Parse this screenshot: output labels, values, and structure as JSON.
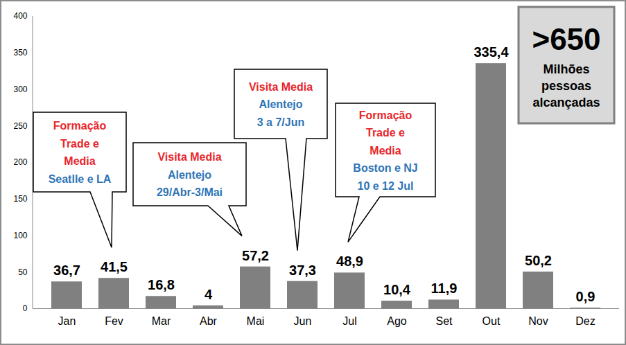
{
  "chart_data": {
    "type": "bar",
    "categories": [
      "Jan",
      "Fev",
      "Mar",
      "Abr",
      "Mai",
      "Jun",
      "Jul",
      "Ago",
      "Set",
      "Out",
      "Nov",
      "Dez"
    ],
    "values": [
      36.7,
      41.5,
      16.8,
      4,
      57.2,
      37.3,
      48.9,
      10.4,
      11.9,
      335.4,
      50.2,
      0.9
    ],
    "value_labels": [
      "36,7",
      "41,5",
      "16,8",
      "4",
      "57,2",
      "37,3",
      "48,9",
      "10,4",
      "11,9",
      "335,4",
      "50,2",
      "0,9"
    ],
    "color": "#808080",
    "ylim": [
      0,
      400
    ],
    "yticks": [
      0,
      50,
      100,
      150,
      200,
      250,
      300,
      350,
      400
    ],
    "grid": false,
    "data_labels": true,
    "annotations": [
      {
        "category": "Fev",
        "title": [
          "Formação",
          "Trade e",
          "Media"
        ],
        "detail": [
          "Seatlle e LA"
        ]
      },
      {
        "category": "Mai",
        "title": [
          "Visita Media"
        ],
        "detail": [
          "Alentejo",
          "29/Abr-3/Mai"
        ]
      },
      {
        "category": "Jun",
        "title": [
          "Visita Media"
        ],
        "detail": [
          "Alentejo",
          "3 a 7/Jun"
        ]
      },
      {
        "category": "Jul",
        "title": [
          "Formação",
          "Trade e",
          "Media"
        ],
        "detail": [
          "Boston e NJ",
          "10 e 12 Jul"
        ]
      }
    ],
    "summary": {
      "text": ">650",
      "caption": [
        "Milhões",
        "pessoas",
        "alcançadas"
      ]
    }
  }
}
